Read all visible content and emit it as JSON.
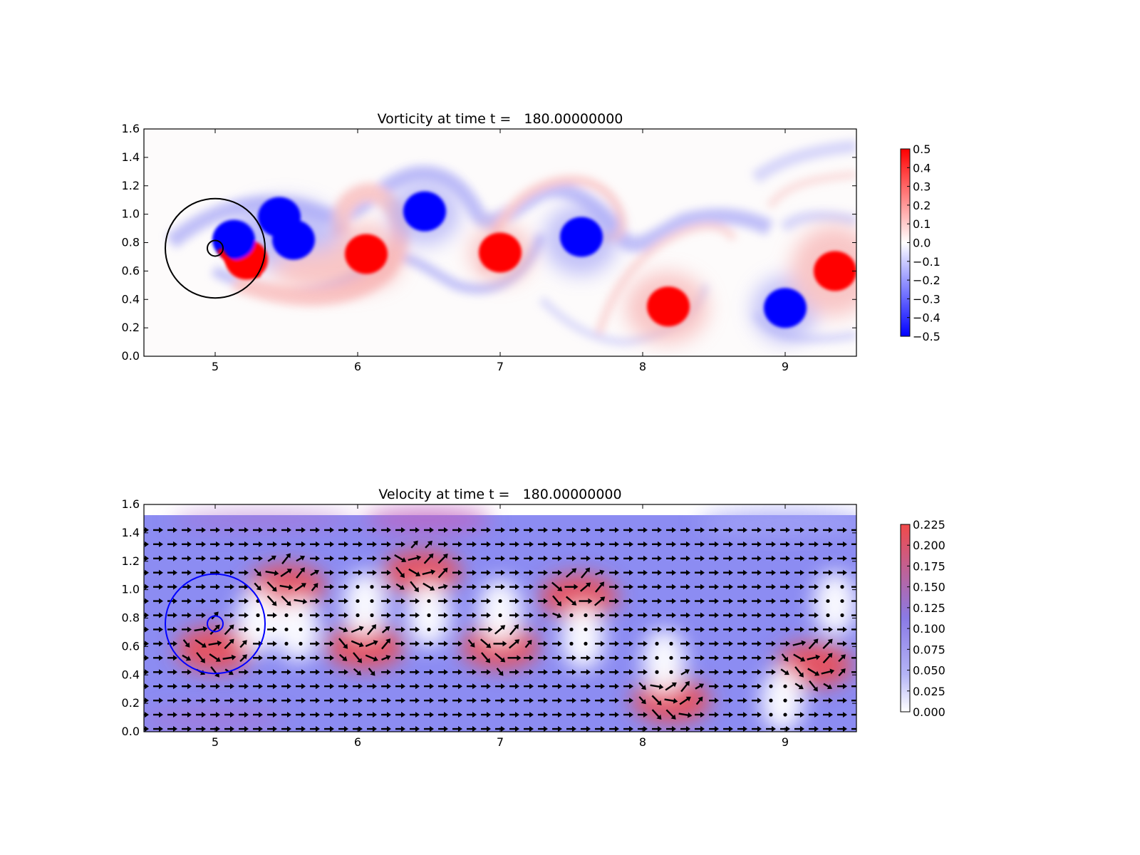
{
  "chart_data": [
    {
      "type": "heatmap",
      "title": "Vorticity at time t =   180.00000000",
      "xlim": [
        4.5,
        9.5
      ],
      "ylim": [
        0.0,
        1.6
      ],
      "xticks": [
        "5",
        "6",
        "7",
        "8",
        "9"
      ],
      "yticks": [
        "0.0",
        "0.2",
        "0.4",
        "0.6",
        "0.8",
        "1.0",
        "1.2",
        "1.4",
        "1.6"
      ],
      "colormap": "bwr",
      "colors": {
        "negative": "#0000ff",
        "zero": "#ffffff",
        "positive": "#ff0000"
      },
      "colorbar": {
        "range": [
          -0.5,
          0.5
        ],
        "ticks": [
          "0.5",
          "0.4",
          "0.3",
          "0.2",
          "0.1",
          "0.0",
          "−0.1",
          "−0.2",
          "−0.3",
          "−0.4",
          "−0.5"
        ]
      },
      "overlays": [
        {
          "shape": "circle",
          "cx": 5.0,
          "cy": 0.76,
          "r": 0.35,
          "color": "#000000"
        },
        {
          "shape": "circle",
          "cx": 5.0,
          "cy": 0.76,
          "r": 0.055,
          "color": "#000000"
        }
      ],
      "vortices": [
        {
          "x": 5.22,
          "y": 0.68,
          "vorticity": 0.5
        },
        {
          "x": 5.13,
          "y": 0.82,
          "vorticity": -0.5
        },
        {
          "x": 5.45,
          "y": 0.98,
          "vorticity": -0.5
        },
        {
          "x": 5.55,
          "y": 0.82,
          "vorticity": -0.5
        },
        {
          "x": 6.06,
          "y": 0.72,
          "vorticity": 0.5
        },
        {
          "x": 6.47,
          "y": 1.02,
          "vorticity": -0.5
        },
        {
          "x": 7.0,
          "y": 0.73,
          "vorticity": 0.5
        },
        {
          "x": 7.57,
          "y": 0.84,
          "vorticity": -0.5
        },
        {
          "x": 8.18,
          "y": 0.35,
          "vorticity": 0.5
        },
        {
          "x": 9.0,
          "y": 0.34,
          "vorticity": -0.5
        },
        {
          "x": 9.35,
          "y": 0.6,
          "vorticity": 0.5
        }
      ]
    },
    {
      "type": "heatmap",
      "title": "Velocity at time t =   180.00000000",
      "xlim": [
        4.5,
        9.5
      ],
      "ylim": [
        0.0,
        1.6
      ],
      "xticks": [
        "5",
        "6",
        "7",
        "8",
        "9"
      ],
      "yticks": [
        "0.0",
        "0.2",
        "0.4",
        "0.6",
        "0.8",
        "1.0",
        "1.2",
        "1.4",
        "1.6"
      ],
      "field_top": 1.52,
      "quiver": {
        "x_spacing": 0.1,
        "y_spacing": 0.1,
        "base_direction": "+x",
        "color": "#000000"
      },
      "colors": {
        "low": "#ffffff",
        "mid": "#7f7ff2",
        "high": "#f24a4a"
      },
      "colorbar": {
        "range": [
          0.0,
          0.225
        ],
        "ticks": [
          "0.225",
          "0.200",
          "0.175",
          "0.150",
          "0.125",
          "0.100",
          "0.075",
          "0.050",
          "0.025",
          "0.000"
        ]
      },
      "overlays": [
        {
          "shape": "circle",
          "cx": 5.0,
          "cy": 0.76,
          "r": 0.35,
          "color": "#0000ff"
        },
        {
          "shape": "circle",
          "cx": 5.0,
          "cy": 0.76,
          "r": 0.055,
          "color": "#0000ff"
        }
      ],
      "high_speed_regions": [
        {
          "x": 5.5,
          "y": 1.02
        },
        {
          "x": 5.0,
          "y": 0.58
        },
        {
          "x": 6.05,
          "y": 0.6
        },
        {
          "x": 6.45,
          "y": 1.12
        },
        {
          "x": 7.0,
          "y": 0.6
        },
        {
          "x": 7.55,
          "y": 0.95
        },
        {
          "x": 8.2,
          "y": 0.22
        },
        {
          "x": 9.2,
          "y": 0.47
        }
      ],
      "stagnation_regions": [
        {
          "x": 5.3,
          "y": 0.78
        },
        {
          "x": 5.58,
          "y": 0.72
        },
        {
          "x": 6.05,
          "y": 0.9
        },
        {
          "x": 6.5,
          "y": 0.82
        },
        {
          "x": 7.0,
          "y": 0.85
        },
        {
          "x": 7.58,
          "y": 0.66
        },
        {
          "x": 8.15,
          "y": 0.5
        },
        {
          "x": 8.98,
          "y": 0.22
        },
        {
          "x": 9.35,
          "y": 0.9
        }
      ]
    }
  ]
}
